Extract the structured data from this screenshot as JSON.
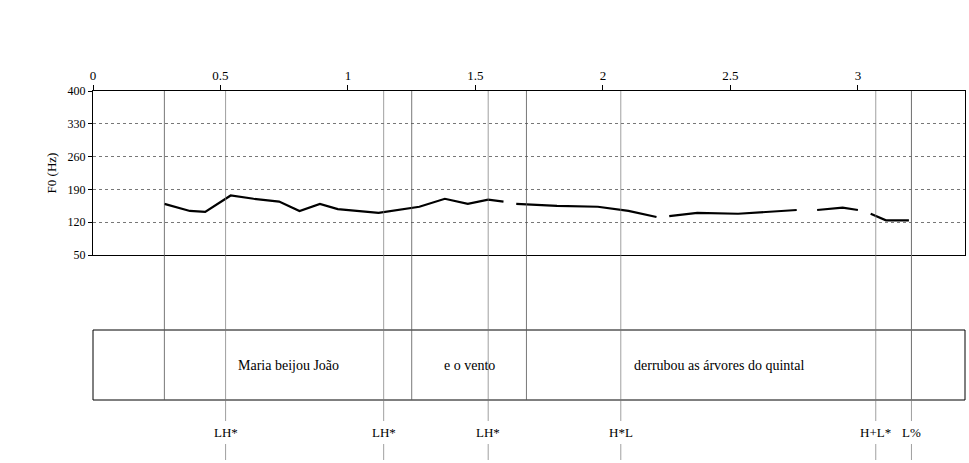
{
  "chart_data": {
    "type": "line",
    "y_label": "F0 (Hz)",
    "color": "#000000",
    "line_style": "solid",
    "grid": true,
    "xlim": [
      0,
      3.42
    ],
    "xticks": [
      0,
      0.5,
      1,
      1.5,
      2,
      2.5,
      3
    ],
    "ylim": [
      50,
      400
    ],
    "yticks": [
      50,
      120,
      190,
      260,
      330,
      400
    ],
    "x": [
      0.28,
      0.38,
      0.44,
      0.54,
      0.63,
      0.73,
      0.81,
      0.89,
      0.96,
      1.12,
      1.28,
      1.38,
      1.47,
      1.55,
      1.61,
      1.64,
      1.66,
      1.82,
      1.98,
      2.1,
      2.21,
      2.24,
      2.26,
      2.37,
      2.53,
      2.64,
      2.76,
      2.8,
      2.84,
      2.94,
      3.0,
      3.03,
      3.05,
      3.11,
      3.2
    ],
    "values": [
      159,
      144,
      142,
      177,
      170,
      164,
      144,
      159,
      148,
      140,
      153,
      170,
      159,
      168,
      164,
      null,
      159,
      155,
      153,
      144,
      131,
      null,
      133,
      140,
      138,
      142,
      146,
      null,
      146,
      151,
      146,
      null,
      138,
      124,
      124
    ],
    "intervals": [
      {
        "start": 0.28,
        "end": 1.25,
        "label": "Maria beijou João"
      },
      {
        "start": 1.25,
        "end": 1.7,
        "label": "e o vento"
      },
      {
        "start": 1.7,
        "end": 3.21,
        "label": "derrubou as árvores do quintal"
      }
    ],
    "tones": [
      {
        "time": 0.52,
        "label": "LH*"
      },
      {
        "time": 1.14,
        "label": "LH*"
      },
      {
        "time": 1.55,
        "label": "LH*"
      },
      {
        "time": 2.07,
        "label": "H*L"
      },
      {
        "time": 3.07,
        "label": "H+L*"
      },
      {
        "time": 3.21,
        "label": "L%"
      }
    ]
  }
}
